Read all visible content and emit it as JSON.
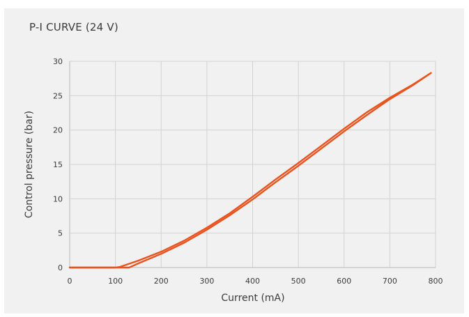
{
  "chart_data": {
    "type": "line",
    "title": "P-I CURVE (24 V)",
    "xlabel": "Current (mA)",
    "ylabel": "Control pressure (bar)",
    "xlim": [
      0,
      800
    ],
    "ylim": [
      0,
      30
    ],
    "xticks": [
      0,
      100,
      200,
      300,
      400,
      500,
      600,
      700,
      800
    ],
    "yticks": [
      0,
      5,
      10,
      15,
      20,
      25,
      30
    ],
    "grid": true,
    "series": [
      {
        "color": "#e8541f",
        "x": [
          0,
          100,
          110,
          150,
          200,
          250,
          300,
          350,
          400,
          450,
          500,
          550,
          600,
          650,
          700,
          750,
          790
        ],
        "y": [
          0,
          0,
          0.1,
          1.0,
          2.3,
          3.9,
          5.8,
          7.9,
          10.3,
          12.8,
          15.2,
          17.7,
          20.2,
          22.6,
          24.7,
          26.6,
          28.3
        ]
      },
      {
        "color": "#e8541f",
        "x": [
          0,
          130,
          150,
          200,
          250,
          300,
          350,
          400,
          450,
          500,
          550,
          600,
          650,
          700,
          750,
          790
        ],
        "y": [
          0,
          0,
          0.6,
          2.0,
          3.6,
          5.5,
          7.6,
          9.9,
          12.4,
          14.8,
          17.3,
          19.8,
          22.2,
          24.5,
          26.5,
          28.3
        ]
      }
    ]
  }
}
